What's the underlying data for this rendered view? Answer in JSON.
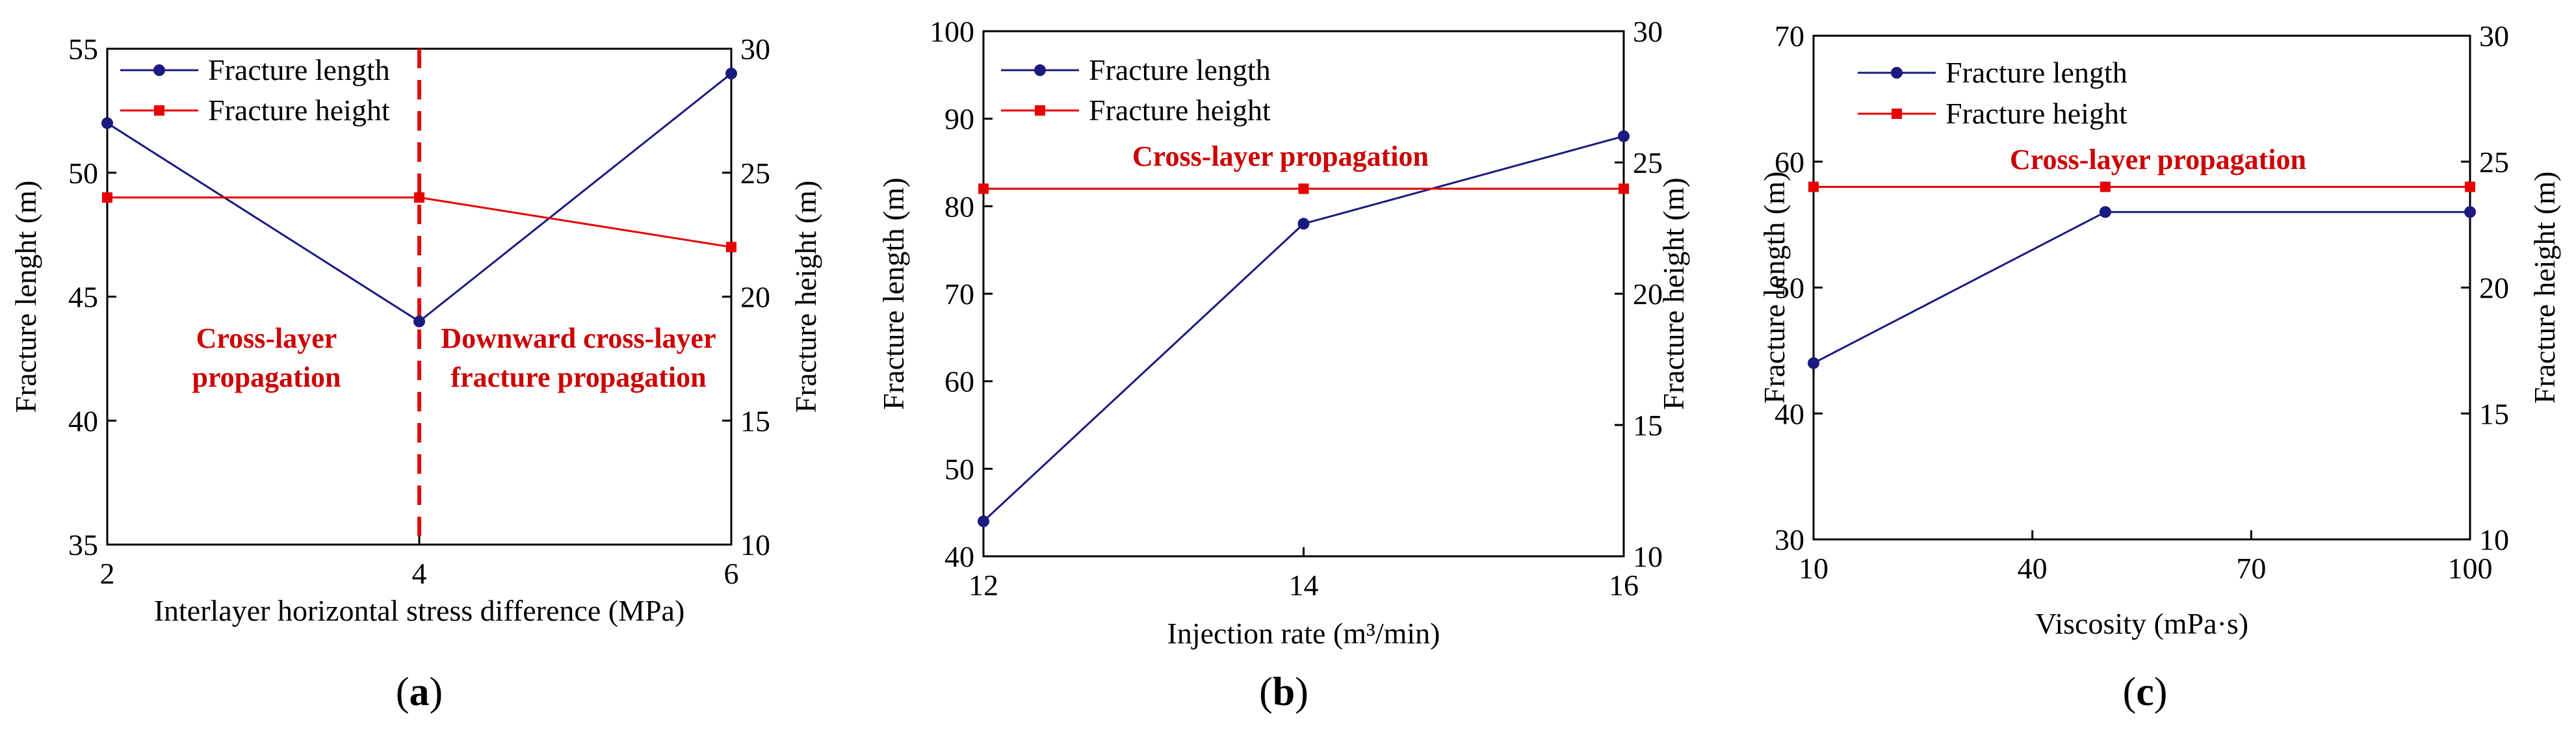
{
  "figure": {
    "panel_labels": [
      "(a)",
      "(b)",
      "(c)"
    ]
  },
  "colors": {
    "length": "#1a1a80",
    "height": "#e60000",
    "annotation": "#cc0000",
    "divider": "#dd1111"
  },
  "chart_data": [
    {
      "type": "line",
      "panel": "a",
      "x": [
        2,
        4,
        6
      ],
      "xticks": [
        2,
        4,
        6
      ],
      "xlim": [
        2,
        6
      ],
      "xlabel": "Interlayer horizontal stress difference (MPa)",
      "ylabel": "Fracture lenght (m)",
      "ylim": [
        35,
        55
      ],
      "yticks": [
        35,
        40,
        45,
        50,
        55
      ],
      "y2label": "Fracture height (m)",
      "y2lim": [
        10,
        30
      ],
      "y2ticks": [
        10,
        15,
        20,
        25,
        30
      ],
      "series": [
        {
          "name": "Fracture length",
          "axis": "left",
          "values": [
            52,
            44,
            54
          ]
        },
        {
          "name": "Fracture height",
          "axis": "right",
          "values": [
            24,
            24,
            22
          ]
        }
      ],
      "vline_x": 4,
      "annotations": [
        {
          "lines": [
            "Cross-layer",
            "propagation"
          ]
        },
        {
          "lines": [
            "Downward cross-layer",
            "fracture propagation"
          ]
        }
      ]
    },
    {
      "type": "line",
      "panel": "b",
      "x": [
        12,
        14,
        16
      ],
      "xticks": [
        12,
        14,
        16
      ],
      "xlim": [
        12,
        16
      ],
      "xlabel": "Injection rate (m³/min)",
      "ylabel": "Fracture length (m)",
      "ylim": [
        40,
        100
      ],
      "yticks": [
        40,
        50,
        60,
        70,
        80,
        90,
        100
      ],
      "y2label": "Fracture height (m)",
      "y2lim": [
        10,
        30
      ],
      "y2ticks": [
        10,
        15,
        20,
        25,
        30
      ],
      "series": [
        {
          "name": "Fracture length",
          "axis": "left",
          "values": [
            44,
            78,
            88
          ]
        },
        {
          "name": "Fracture height",
          "axis": "right",
          "values": [
            24,
            24,
            24
          ]
        }
      ],
      "annotations": [
        {
          "lines": [
            "Cross-layer propagation"
          ]
        }
      ]
    },
    {
      "type": "line",
      "panel": "c",
      "x": [
        10,
        50,
        100
      ],
      "xticks": [
        10,
        40,
        70,
        100
      ],
      "xlim": [
        10,
        100
      ],
      "xlabel": "Viscosity (mPa·s)",
      "ylabel": "Fracture length (m)",
      "ylim": [
        30,
        70
      ],
      "yticks": [
        30,
        40,
        50,
        60,
        70
      ],
      "y2label": "Fracture height (m)",
      "y2lim": [
        10,
        30
      ],
      "y2ticks": [
        10,
        15,
        20,
        25,
        30
      ],
      "series": [
        {
          "name": "Fracture length",
          "axis": "left",
          "values": [
            44,
            56,
            56
          ]
        },
        {
          "name": "Fracture height",
          "axis": "right",
          "values": [
            24,
            24,
            24
          ]
        }
      ],
      "annotations": [
        {
          "lines": [
            "Cross-layer propagation"
          ]
        }
      ]
    }
  ]
}
